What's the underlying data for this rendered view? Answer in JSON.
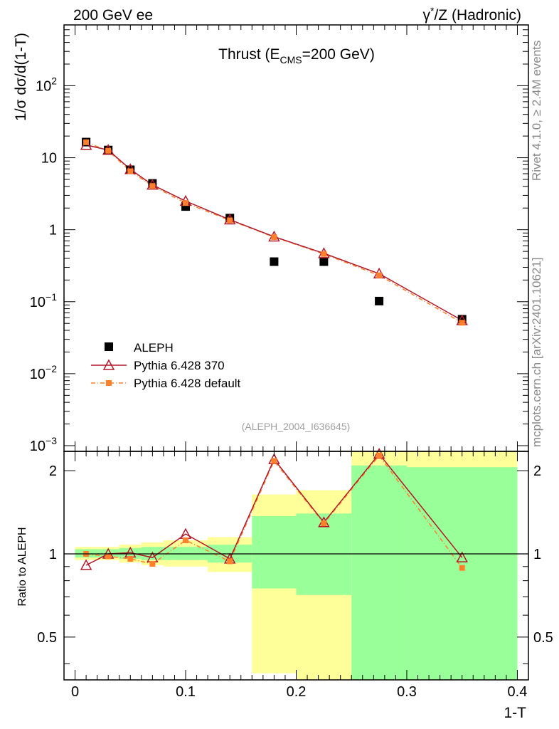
{
  "header": {
    "left": "200 GeV ee",
    "right_prefix": "γ",
    "right_sup": "*",
    "right_suffix": "/Z (Hadronic)"
  },
  "side_labels": {
    "rivet": "Rivet 4.1.0, ≥ 2.4M events",
    "mcplots": "mcplots.cern.ch [arXiv:2401.10621]"
  },
  "colors": {
    "data": "#000000",
    "pythia370": "#b2182b",
    "pythia_default": "#ff7f2a",
    "band_inner": "#99ff99",
    "band_outer": "#ffff99"
  },
  "chart_data": [
    {
      "type": "scatter",
      "title_main": "Thrust (E",
      "title_sub": "CMS",
      "title_tail": "=200 GeV)",
      "ylabel": "1/σ  dσ/d(1-T)",
      "xlabel": "1-T",
      "yscale": "log",
      "ylim": [
        0.001,
        700
      ],
      "xlim": [
        -0.01,
        0.41
      ],
      "ytick_labels": [
        {
          "value": 0.001,
          "base": "10",
          "exp": "−3"
        },
        {
          "value": 0.01,
          "base": "10",
          "exp": "−2"
        },
        {
          "value": 0.1,
          "base": "10",
          "exp": "−1"
        },
        {
          "value": 1,
          "base": "1",
          "exp": ""
        },
        {
          "value": 10,
          "base": "10",
          "exp": ""
        },
        {
          "value": 100,
          "base": "10",
          "exp": "2"
        }
      ],
      "reference": "(ALEPH_2004_I636645)",
      "series": [
        {
          "name": "ALEPH",
          "marker": "square",
          "x": [
            0.01,
            0.03,
            0.05,
            0.07,
            0.1,
            0.14,
            0.18,
            0.225,
            0.275,
            0.35
          ],
          "y": [
            16.5,
            12.8,
            6.8,
            4.4,
            2.1,
            1.45,
            0.36,
            0.36,
            0.102,
            0.057
          ]
        },
        {
          "name": "Pythia 6.428 370",
          "marker": "triangle",
          "x": [
            0.01,
            0.03,
            0.05,
            0.07,
            0.1,
            0.14,
            0.18,
            0.225,
            0.275,
            0.35
          ],
          "y": [
            15.0,
            12.8,
            6.9,
            4.2,
            2.5,
            1.38,
            0.8,
            0.47,
            0.245,
            0.055
          ]
        },
        {
          "name": "Pythia 6.428 default",
          "marker": "smallsquare",
          "x": [
            0.01,
            0.03,
            0.05,
            0.07,
            0.1,
            0.14,
            0.18,
            0.225,
            0.275,
            0.35
          ],
          "y": [
            16.4,
            12.5,
            6.5,
            4.05,
            2.35,
            1.35,
            0.79,
            0.46,
            0.232,
            0.051
          ]
        }
      ]
    },
    {
      "type": "line",
      "ylabel": "Ratio to ALEPH",
      "yscale": "log",
      "ylim": [
        0.35,
        2.35
      ],
      "xlim": [
        -0.01,
        0.41
      ],
      "xticks": [
        0,
        0.1,
        0.2,
        0.3,
        0.4
      ],
      "xtick_labels": [
        "0",
        "0.1",
        "0.2",
        "0.3",
        "0.4"
      ],
      "ytick_labels": [
        "0.5",
        "1",
        "2"
      ],
      "yticks": [
        0.5,
        1,
        2
      ],
      "bands": [
        {
          "x0": 0.0,
          "x1": 0.02,
          "inner": [
            0.97,
            1.04
          ],
          "outer": [
            0.95,
            1.06
          ]
        },
        {
          "x0": 0.02,
          "x1": 0.04,
          "inner": [
            0.97,
            1.04
          ],
          "outer": [
            0.95,
            1.06
          ]
        },
        {
          "x0": 0.04,
          "x1": 0.06,
          "inner": [
            0.96,
            1.05
          ],
          "outer": [
            0.93,
            1.08
          ]
        },
        {
          "x0": 0.06,
          "x1": 0.08,
          "inner": [
            0.95,
            1.06
          ],
          "outer": [
            0.91,
            1.1
          ]
        },
        {
          "x0": 0.08,
          "x1": 0.12,
          "inner": [
            0.95,
            1.06
          ],
          "outer": [
            0.9,
            1.12
          ]
        },
        {
          "x0": 0.12,
          "x1": 0.16,
          "inner": [
            0.93,
            1.08
          ],
          "outer": [
            0.86,
            1.15
          ]
        },
        {
          "x0": 0.16,
          "x1": 0.2,
          "inner": [
            0.75,
            1.37
          ],
          "outer": [
            0.37,
            1.64
          ]
        },
        {
          "x0": 0.2,
          "x1": 0.25,
          "inner": [
            0.71,
            1.4
          ],
          "outer": [
            0.35,
            1.7
          ]
        },
        {
          "x0": 0.25,
          "x1": 0.3,
          "inner": [
            0.35,
            2.09
          ],
          "outer": [
            0.35,
            2.35
          ]
        },
        {
          "x0": 0.3,
          "x1": 0.4,
          "inner": [
            0.35,
            2.06
          ],
          "outer": [
            0.35,
            2.35
          ]
        }
      ],
      "series": [
        {
          "name": "Pythia 6.428 370",
          "x": [
            0.01,
            0.03,
            0.05,
            0.07,
            0.1,
            0.14,
            0.18,
            0.225,
            0.275,
            0.35
          ],
          "y": [
            0.91,
            1.0,
            1.01,
            0.97,
            1.18,
            0.96,
            2.2,
            1.3,
            2.3,
            0.97
          ]
        },
        {
          "name": "Pythia 6.428 default",
          "x": [
            0.01,
            0.03,
            0.05,
            0.07,
            0.1,
            0.14,
            0.18,
            0.225,
            0.275,
            0.35
          ],
          "y": [
            1.0,
            0.98,
            0.96,
            0.92,
            1.12,
            0.94,
            2.17,
            1.29,
            2.27,
            0.89
          ]
        }
      ]
    }
  ]
}
